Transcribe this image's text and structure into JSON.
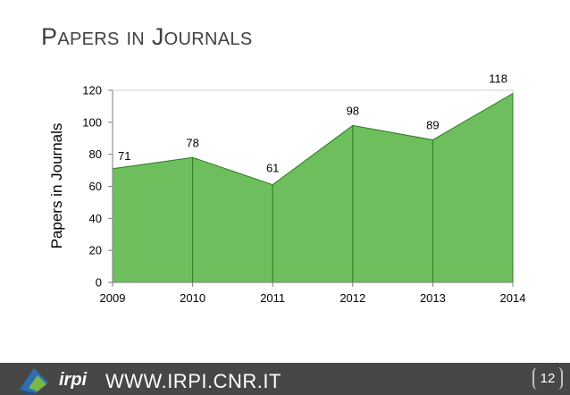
{
  "slide": {
    "title_parts": [
      {
        "cap": "P",
        "rest": "APERS"
      },
      {
        "cap": "",
        "rest": "IN"
      },
      {
        "cap": "J",
        "rest": "OURNALS"
      }
    ],
    "footer_url": "WWW.IRPI.CNR.IT",
    "logo_text": "irpi",
    "page_number": "12"
  },
  "colors": {
    "area_fill": "#6EBE5E",
    "area_stroke": "#2E7A22",
    "axis": "#7f7f7f",
    "footer_bg": "#474747"
  },
  "chart_data": {
    "type": "area",
    "x": [
      2009,
      2010,
      2011,
      2012,
      2013,
      2014
    ],
    "values": [
      71,
      78,
      61,
      98,
      89,
      118
    ],
    "ylabel": "Papers in Journals",
    "ylim": [
      0,
      120
    ],
    "yticks": [
      0,
      20,
      40,
      60,
      80,
      100,
      120
    ],
    "grid": false,
    "legend": "none"
  }
}
